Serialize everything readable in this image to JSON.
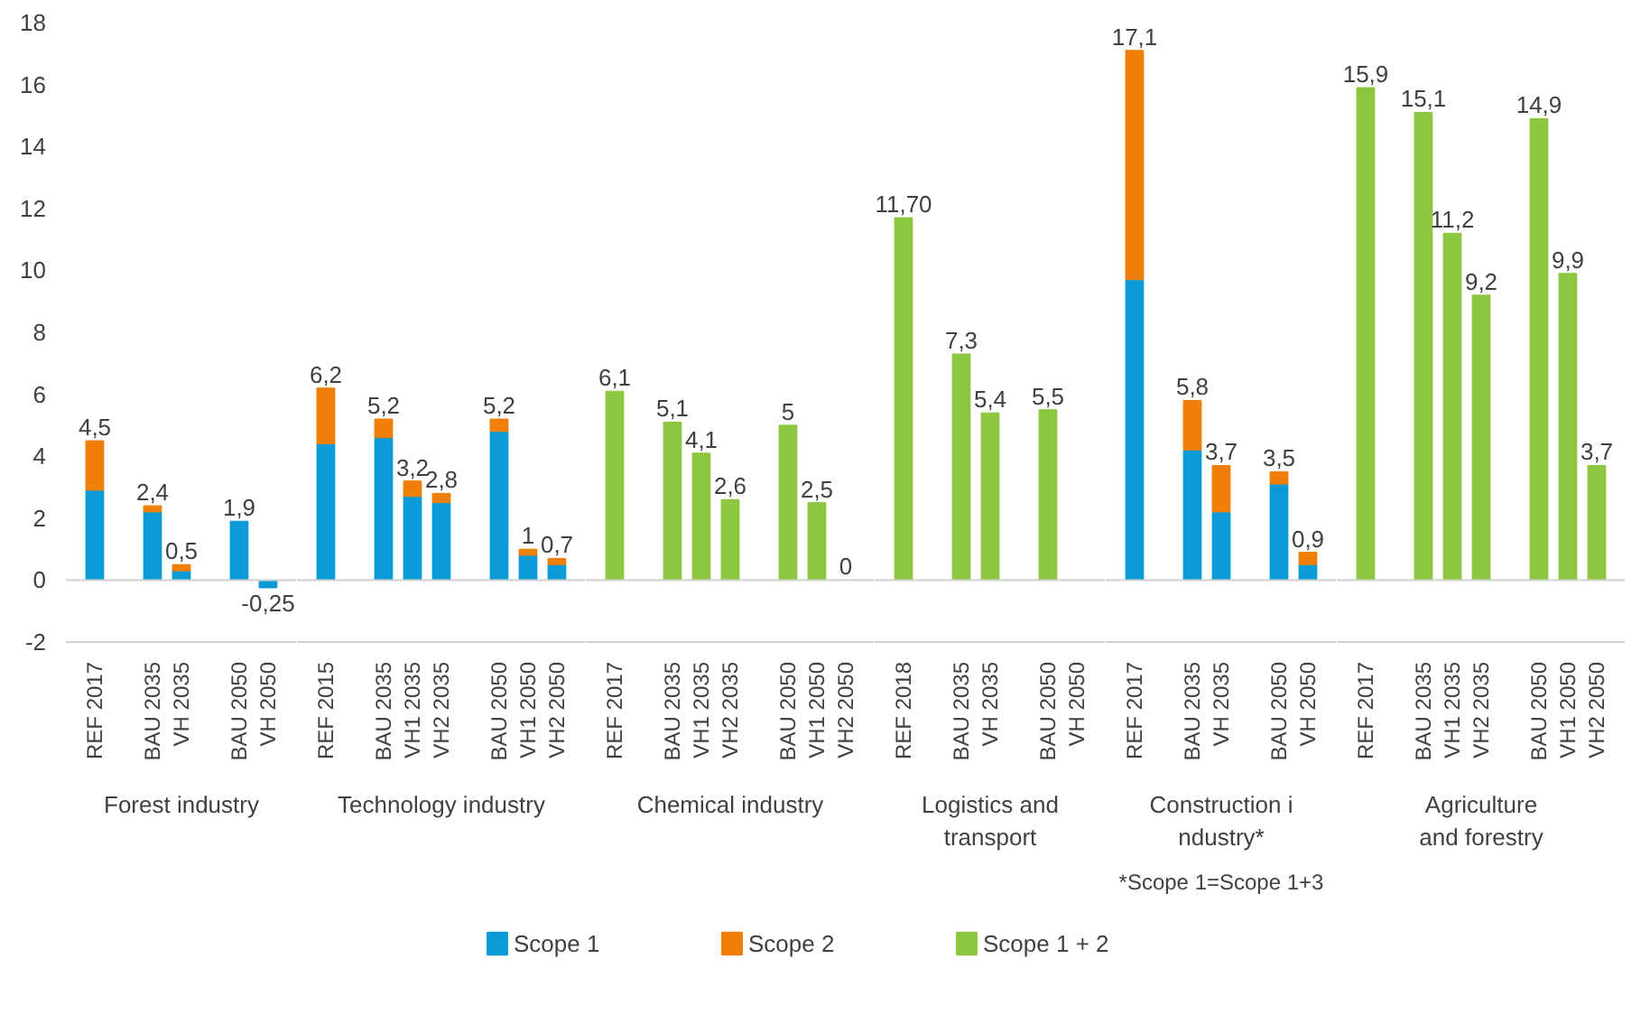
{
  "chart_data": [
    {
      "type": "bar",
      "stacked": true,
      "xlabel": "Forest industry",
      "categories": [
        "REF 2017",
        null,
        "BAU 2035",
        "VH 2035",
        null,
        "BAU 2050",
        "VH 2050"
      ],
      "ylim": [
        -2,
        18
      ],
      "yticks": [
        -2,
        0,
        2,
        4,
        6,
        8,
        10,
        12,
        14,
        16,
        18
      ],
      "legend": "bottom",
      "series": [
        {
          "name": "Scope 1",
          "color": "#0a9bd6",
          "values": [
            2.9,
            null,
            2.2,
            0.3,
            null,
            1.9,
            -0.25
          ]
        },
        {
          "name": "Scope 2",
          "color": "#f07f09",
          "values": [
            1.6,
            null,
            0.2,
            0.2,
            null,
            null,
            null
          ]
        }
      ],
      "totals": [
        "4,5",
        null,
        "2,4",
        "0,5",
        null,
        "1,9",
        "-0,25"
      ]
    },
    {
      "type": "bar",
      "stacked": true,
      "xlabel": "Technology industry",
      "categories": [
        "REF 2015",
        null,
        "BAU 2035",
        "VH1 2035",
        "VH2 2035",
        null,
        "BAU 2050",
        "VH1 2050",
        "VH2 2050"
      ],
      "ylim": [
        -2,
        18
      ],
      "yticks": [
        -2,
        0,
        2,
        4,
        6,
        8,
        10,
        12,
        14,
        16,
        18
      ],
      "tick_labels": "x",
      "series": [
        {
          "color": "#0a9bd6",
          "values": [
            4.4,
            null,
            4.6,
            2.7,
            2.5,
            null,
            4.8,
            0.8,
            0.5
          ]
        },
        {
          "color": "#f07f09",
          "values": [
            1.8,
            null,
            0.6,
            0.5,
            0.3,
            null,
            0.4,
            0.2,
            0.2
          ]
        }
      ],
      "totals": [
        "6,2",
        null,
        "5,2",
        "3,2",
        "2,8",
        null,
        "5,2",
        "1",
        "0,7"
      ]
    },
    {
      "type": "bar",
      "stacked": true,
      "xlabel": "Chemical industry",
      "categories": [
        "REF 2017",
        null,
        "BAU 2035",
        "VH1 2035",
        "VH2 2035",
        null,
        "BAU 2050",
        "VH1 2050",
        "VH2 2050"
      ],
      "ylim": [
        -2,
        18
      ],
      "yticks": [
        -2,
        0,
        2,
        4,
        6,
        8,
        10,
        12,
        14,
        16,
        18
      ],
      "tick_labels": "x",
      "legend": "bottom",
      "series": [
        {
          "name": "Scope 1 + 2",
          "color": "#8dc63f",
          "values": [
            6.1,
            null,
            5.1,
            4.1,
            2.6,
            null,
            5,
            2.5,
            0
          ]
        }
      ],
      "totals": [
        "6,1",
        null,
        "5,1",
        "4,1",
        "2,6",
        null,
        "5",
        "2,5",
        "0"
      ]
    },
    {
      "type": "bar",
      "stacked": true,
      "xlabel": "Logistics and\ntransport",
      "categories": [
        "REF 2018",
        null,
        "BAU 2035",
        "VH 2035",
        null,
        "BAU 2050",
        "VH 2050"
      ],
      "ylim": [
        -2,
        18
      ],
      "yticks": [
        -2,
        0,
        2,
        4,
        6,
        8,
        10,
        12,
        14,
        16,
        18
      ],
      "tick_labels": "x",
      "series": [
        {
          "color": "#8dc63f",
          "values": [
            11.7,
            null,
            7.3,
            5.4,
            null,
            5.5,
            null
          ]
        }
      ],
      "totals": [
        "11,70",
        null,
        "7,3",
        "5,4",
        null,
        "5,5",
        null
      ]
    },
    {
      "type": "bar",
      "stacked": true,
      "xlabel": "Construction i\nndustry*",
      "annotations": [
        "*Scope 1=Scope 1+3"
      ],
      "categories": [
        "REF 2017",
        null,
        "BAU 2035",
        "VH 2035",
        null,
        "BAU 2050",
        "VH 2050"
      ],
      "ylim": [
        -2,
        18
      ],
      "yticks": [
        -2,
        0,
        2,
        4,
        6,
        8,
        10,
        12,
        14,
        16,
        18
      ],
      "tick_labels": "x",
      "series": [
        {
          "color": "#0a9bd6",
          "values": [
            9.7,
            null,
            4.2,
            2.2,
            null,
            3.1,
            0.5
          ]
        },
        {
          "color": "#f07f09",
          "values": [
            7.4,
            null,
            1.6,
            1.5,
            null,
            0.4,
            0.4
          ]
        }
      ],
      "totals": [
        "17,1",
        null,
        "5,8",
        "3,7",
        null,
        "3,5",
        "0,9"
      ]
    },
    {
      "type": "bar",
      "stacked": true,
      "xlabel": "Agriculture\nand forestry",
      "categories": [
        "REF 2017",
        null,
        "BAU 2035",
        "VH1 2035",
        "VH2 2035",
        null,
        "BAU 2050",
        "VH1 2050",
        "VH2 2050"
      ],
      "ylim": [
        -2,
        18
      ],
      "yticks": [
        -2,
        0,
        2,
        4,
        6,
        8,
        10,
        12,
        14,
        16,
        18
      ],
      "tick_labels": "x",
      "series": [
        {
          "color": "#8dc63f",
          "values": [
            15.9,
            null,
            15.1,
            11.2,
            9.2,
            null,
            14.9,
            9.9,
            3.7
          ]
        }
      ],
      "totals": [
        "15,9",
        null,
        "15,1",
        "11,2",
        "9,2",
        null,
        "14,9",
        "9,9",
        "3,7"
      ]
    }
  ]
}
